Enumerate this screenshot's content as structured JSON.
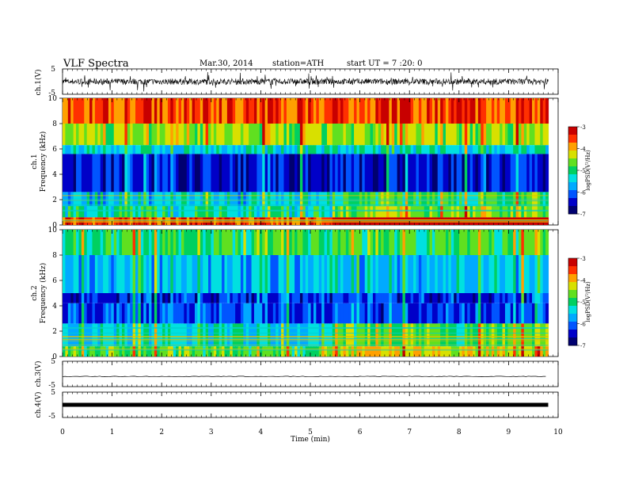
{
  "header": {
    "title": "VLF  Spectra",
    "date": "Mar.30, 2014",
    "station": "station=ATH",
    "start": "start  UT  =   7  :20: 0"
  },
  "chart_data": [
    {
      "type": "line",
      "panel": "ch1-waveform",
      "ylabel": "ch.1(V)",
      "yticks": [
        "5",
        "-5"
      ],
      "ylim": [
        -5,
        5
      ],
      "xlim": [
        0,
        10
      ],
      "data_end_min": 9.8,
      "description_level": 0.0,
      "noise_amplitude": 1.2
    },
    {
      "type": "heatmap",
      "panel": "ch1-spectrogram",
      "ylabel_top": "ch.1",
      "ylabel": "Frequency  (kHz)",
      "yticks": [
        "0",
        "2",
        "4",
        "6",
        "8",
        "10"
      ],
      "ylim": [
        0,
        10
      ],
      "xlim": [
        0,
        10
      ],
      "data_end_min": 9.8,
      "colorbar": {
        "label": "logPSD(V²/Hz)",
        "ticks": [
          "-3",
          "-4",
          "-5",
          "-6",
          "-7"
        ],
        "range": [
          -7,
          -3
        ]
      },
      "bands": [
        {
          "freq_khz": [
            8,
            10
          ],
          "logpsd": -3.6
        },
        {
          "freq_khz": [
            6.3,
            8
          ],
          "logpsd": -4.5
        },
        {
          "freq_khz": [
            5.6,
            6.3
          ],
          "logpsd": -5.4
        },
        {
          "freq_khz": [
            2.6,
            5.6
          ],
          "logpsd": -6.4
        },
        {
          "freq_khz": [
            1.5,
            2.6
          ],
          "logpsd": -5.5
        },
        {
          "freq_khz": [
            0.6,
            1.5
          ],
          "logpsd": -5.2
        },
        {
          "freq_khz": [
            0,
            0.6
          ],
          "logpsd": -3.5
        }
      ],
      "transition_min": 5.4
    },
    {
      "type": "heatmap",
      "panel": "ch2-spectrogram",
      "ylabel_top": "ch.2",
      "ylabel": "Frequency  (kHz)",
      "yticks": [
        "0",
        "2",
        "4",
        "6",
        "8",
        "10"
      ],
      "ylim": [
        0,
        10
      ],
      "xlim": [
        0,
        10
      ],
      "data_end_min": 9.8,
      "colorbar": {
        "label": "logPSD(V²/Hz)",
        "ticks": [
          "-3",
          "-4",
          "-5",
          "-6",
          "-7"
        ],
        "range": [
          -7,
          -3
        ]
      },
      "bands": [
        {
          "freq_khz": [
            8,
            10
          ],
          "logpsd": -4.9
        },
        {
          "freq_khz": [
            5,
            8
          ],
          "logpsd": -5.6
        },
        {
          "freq_khz": [
            4.2,
            5
          ],
          "logpsd": -6.3
        },
        {
          "freq_khz": [
            2.6,
            4.2
          ],
          "logpsd": -6.2
        },
        {
          "freq_khz": [
            0.8,
            2.6
          ],
          "logpsd": -5.4
        },
        {
          "freq_khz": [
            0,
            0.8
          ],
          "logpsd": -4.8
        }
      ],
      "transition_min": 5.4
    },
    {
      "type": "line",
      "panel": "ch3-waveform",
      "ylabel": "ch.3(V)",
      "yticks": [
        "5",
        "-5"
      ],
      "ylim": [
        -5,
        5
      ],
      "xlim": [
        0,
        10
      ],
      "data_end_min": 9.8,
      "level": -1.0
    },
    {
      "type": "line",
      "panel": "ch4-waveform",
      "ylabel": "ch.4(V)",
      "yticks": [
        "5",
        "-5"
      ],
      "ylim": [
        -5,
        5
      ],
      "xlim": [
        0,
        10
      ],
      "data_end_min": 9.8,
      "level": 0.0
    }
  ],
  "xaxis": {
    "label": "Time  (min)",
    "ticks": [
      "0",
      "1",
      "2",
      "3",
      "4",
      "5",
      "6",
      "7",
      "8",
      "9",
      "10"
    ]
  },
  "colors": {
    "colormap": [
      "#000070",
      "#0000c8",
      "#0055ff",
      "#00aaff",
      "#00e0e0",
      "#00d060",
      "#60e020",
      "#d8e000",
      "#ffa000",
      "#ff3000",
      "#c80000"
    ]
  }
}
